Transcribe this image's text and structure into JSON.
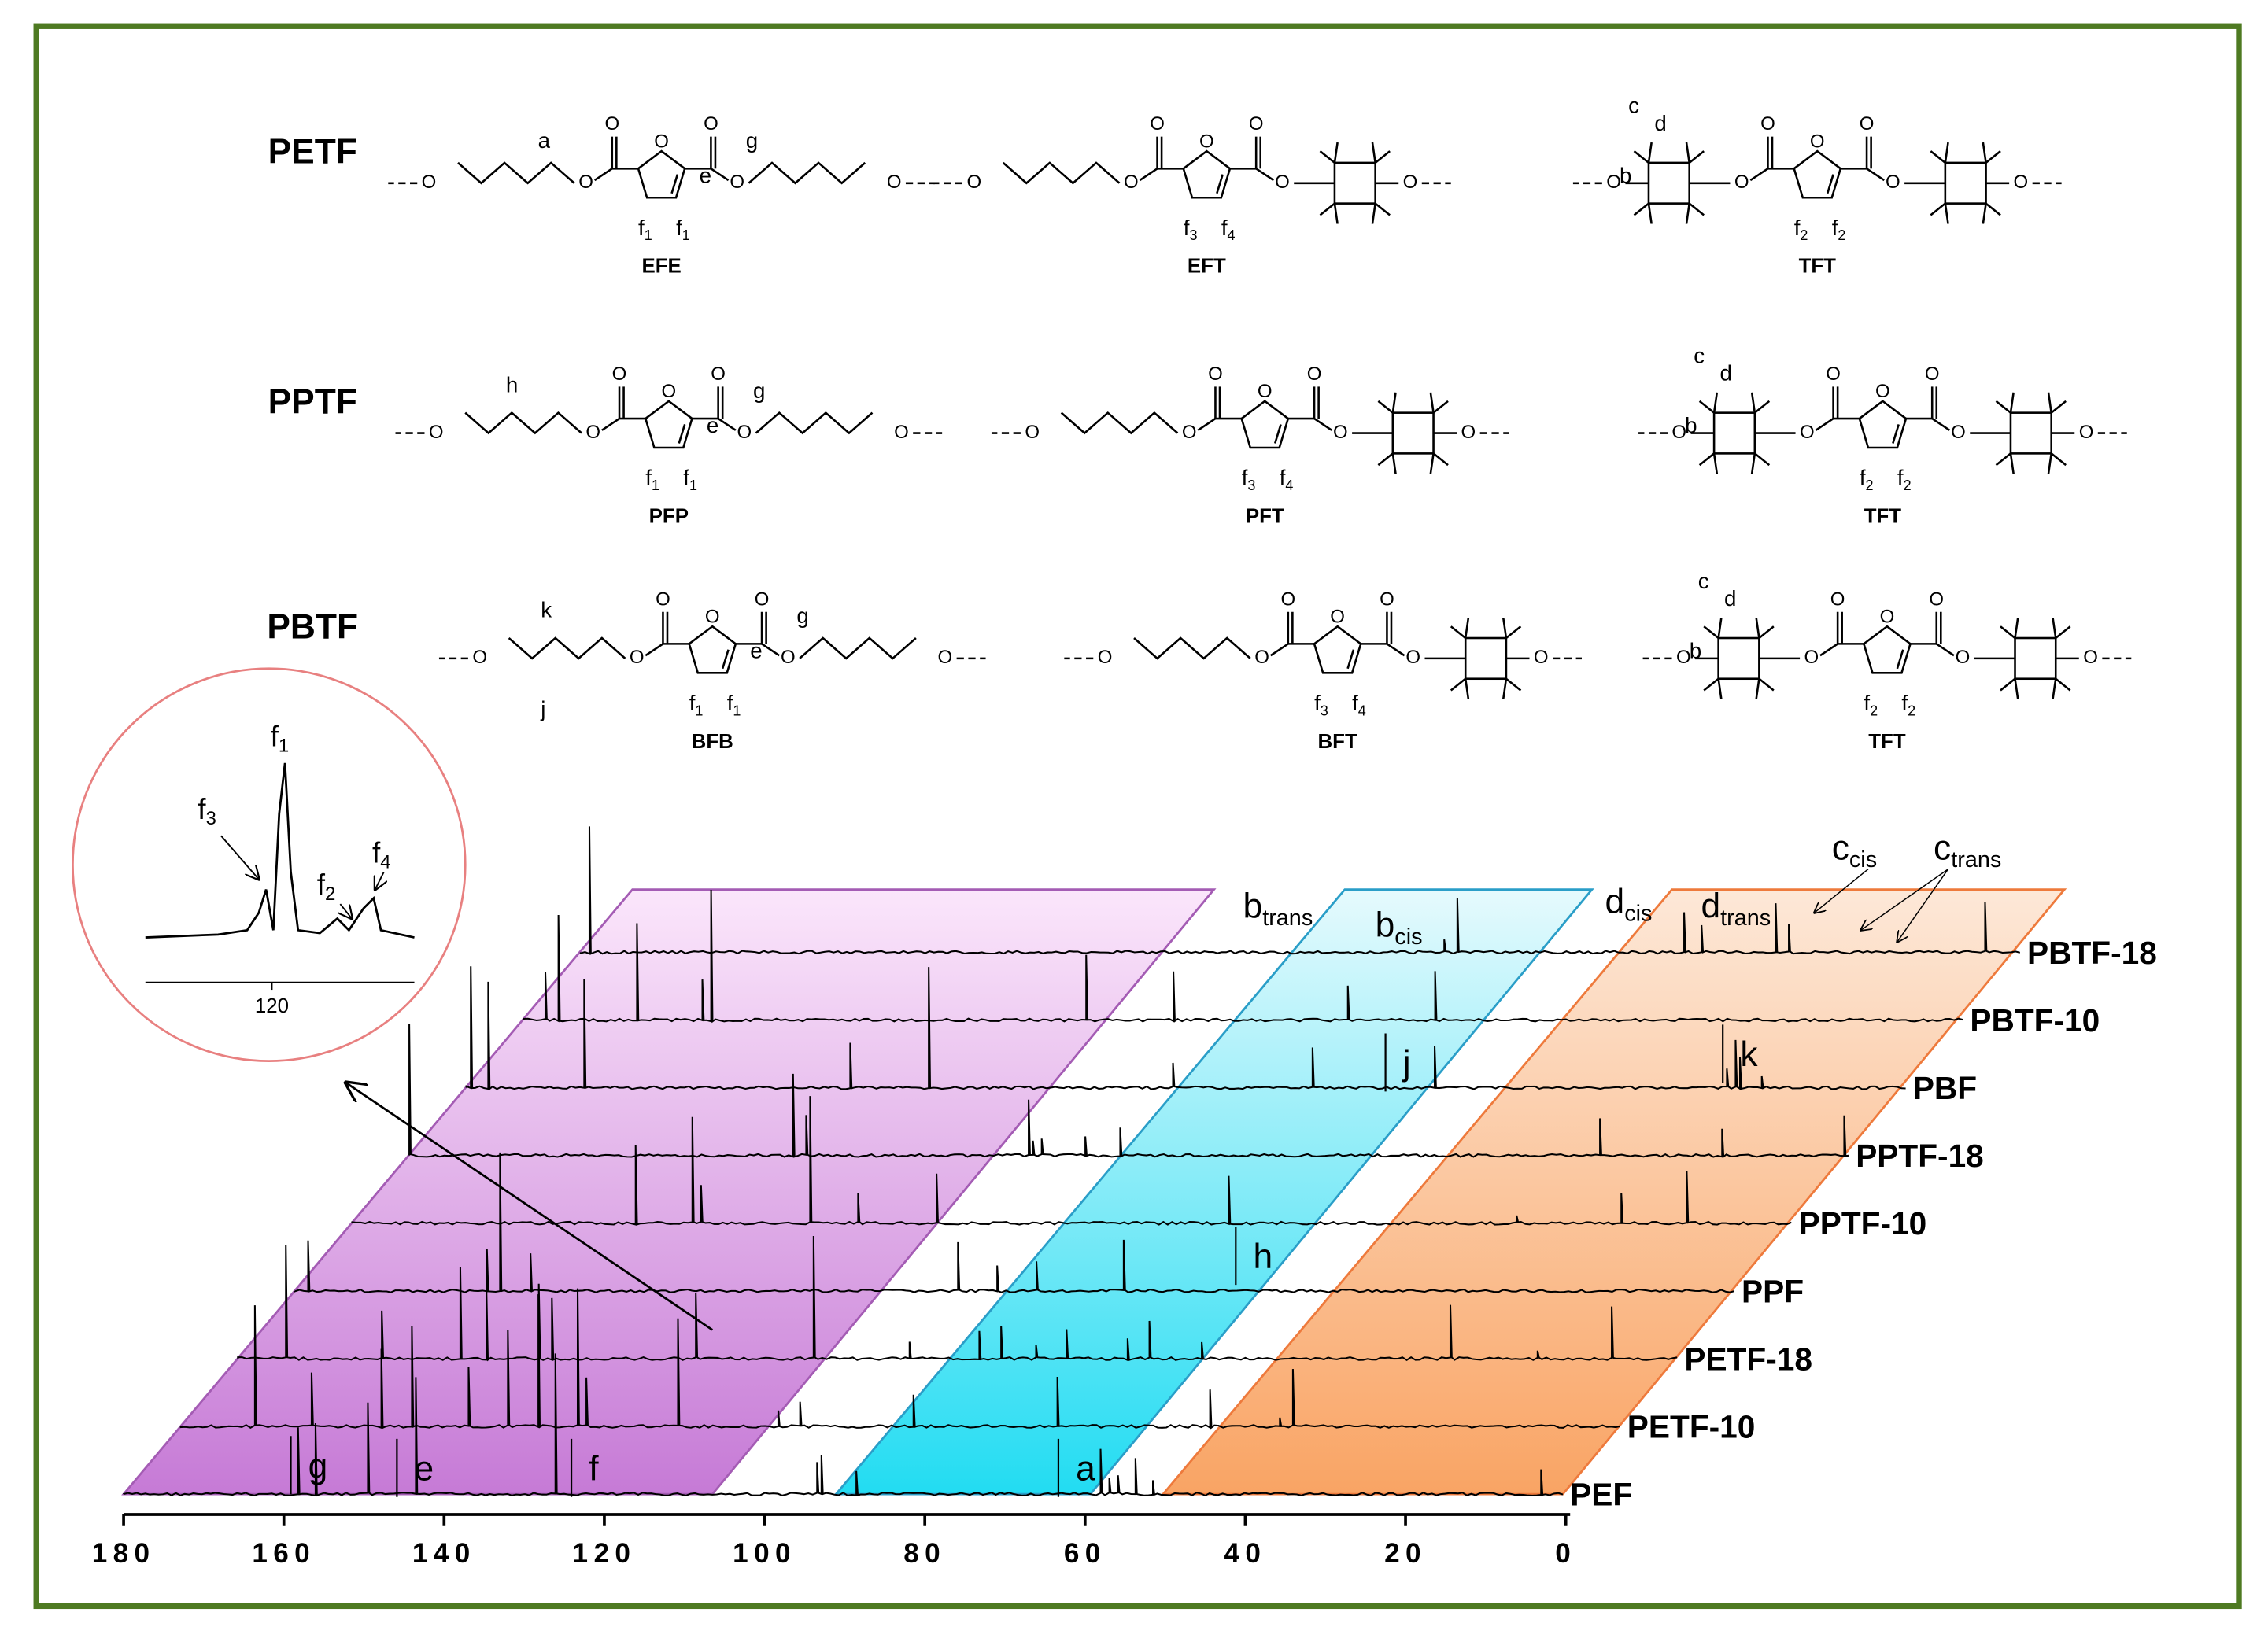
{
  "structures": {
    "atom": "O",
    "rows": [
      {
        "polymer": "PETF",
        "units": [
          {
            "name": "EFE",
            "labels": [
              {
                "t": "a"
              },
              {
                "t": "e"
              },
              {
                "t": "g"
              },
              {
                "t": "f",
                "sub": "1"
              },
              {
                "t": "f",
                "sub": "1"
              }
            ]
          },
          {
            "name": "EFT",
            "labels": [
              {
                "t": "f",
                "sub": "3"
              },
              {
                "t": "f",
                "sub": "4"
              }
            ]
          },
          {
            "name": "TFT",
            "labels": [
              {
                "t": "c"
              },
              {
                "t": "d"
              },
              {
                "t": "b"
              },
              {
                "t": "f",
                "sub": "2"
              },
              {
                "t": "f",
                "sub": "2"
              }
            ]
          }
        ]
      },
      {
        "polymer": "PPTF",
        "units": [
          {
            "name": "PFP",
            "labels": [
              {
                "t": "h"
              },
              {
                "t": "e"
              },
              {
                "t": "g"
              },
              {
                "t": "f",
                "sub": "1"
              },
              {
                "t": "f",
                "sub": "1"
              }
            ]
          },
          {
            "name": "PFT",
            "labels": [
              {
                "t": "f",
                "sub": "3"
              },
              {
                "t": "f",
                "sub": "4"
              }
            ]
          },
          {
            "name": "TFT",
            "labels": [
              {
                "t": "c"
              },
              {
                "t": "d"
              },
              {
                "t": "b"
              },
              {
                "t": "f",
                "sub": "2"
              },
              {
                "t": "f",
                "sub": "2"
              }
            ]
          }
        ]
      },
      {
        "polymer": "PBTF",
        "units": [
          {
            "name": "BFB",
            "labels": [
              {
                "t": "k"
              },
              {
                "t": "j"
              },
              {
                "t": "e"
              },
              {
                "t": "g"
              },
              {
                "t": "f",
                "sub": "1"
              },
              {
                "t": "f",
                "sub": "1"
              }
            ]
          },
          {
            "name": "BFT",
            "labels": [
              {
                "t": "f",
                "sub": "3"
              },
              {
                "t": "f",
                "sub": "4"
              }
            ]
          },
          {
            "name": "TFT",
            "labels": [
              {
                "t": "c"
              },
              {
                "t": "d"
              },
              {
                "t": "b"
              },
              {
                "t": "f",
                "sub": "2"
              },
              {
                "t": "f",
                "sub": "2"
              }
            ]
          }
        ]
      }
    ]
  },
  "spectrum": {
    "ticks": [
      180,
      160,
      140,
      120,
      100,
      80,
      60,
      40,
      20,
      0
    ],
    "traces": [
      {
        "name": "PEF",
        "labels": [
          {
            "t": "g"
          },
          {
            "t": "e"
          },
          {
            "t": "f"
          },
          {
            "t": "a"
          }
        ]
      },
      {
        "name": "PETF-10",
        "labels": []
      },
      {
        "name": "PETF-18",
        "labels": []
      },
      {
        "name": "PPF",
        "labels": [
          {
            "t": "h"
          }
        ]
      },
      {
        "name": "PPTF-10",
        "labels": []
      },
      {
        "name": "PPTF-18",
        "labels": []
      },
      {
        "name": "PBF",
        "labels": [
          {
            "t": "j"
          },
          {
            "t": "k"
          }
        ]
      },
      {
        "name": "PBTF-10",
        "labels": []
      },
      {
        "name": "PBTF-18",
        "labels": [
          {
            "t": "b",
            "sub": "trans"
          },
          {
            "t": "b",
            "sub": "cis"
          },
          {
            "t": "d",
            "sub": "cis"
          },
          {
            "t": "d",
            "sub": "trans"
          },
          {
            "t": "c",
            "sub": "cis"
          },
          {
            "t": "c",
            "sub": "trans"
          }
        ]
      }
    ]
  },
  "inset": {
    "labels": [
      {
        "t": "f",
        "sub": "1"
      },
      {
        "t": "f",
        "sub": "3"
      },
      {
        "t": "f",
        "sub": "2"
      },
      {
        "t": "f",
        "sub": "4"
      }
    ],
    "tick": 120
  }
}
